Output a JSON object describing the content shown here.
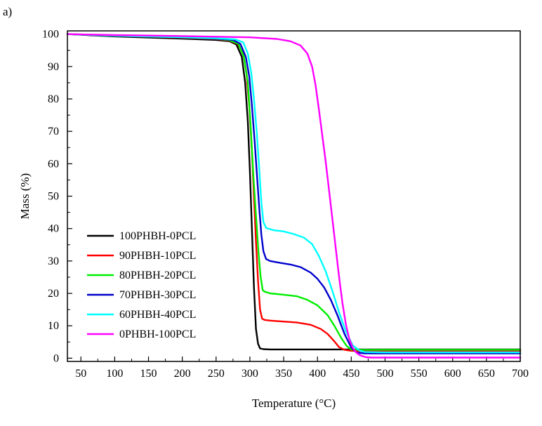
{
  "panel_label": "a)",
  "chart_data": {
    "type": "line",
    "title": "",
    "xlabel": "Temperature (°C)",
    "ylabel": "Mass (%)",
    "xlim": [
      30,
      700
    ],
    "ylim": [
      -1,
      101
    ],
    "xticks": [
      50,
      100,
      150,
      200,
      250,
      300,
      350,
      400,
      450,
      500,
      550,
      600,
      650,
      700
    ],
    "yticks": [
      0,
      10,
      20,
      30,
      40,
      50,
      60,
      70,
      80,
      90,
      100
    ],
    "grid": false,
    "legend_position": "bottom-left",
    "series": [
      {
        "name": "100PHBH-0PCL",
        "color": "#000000",
        "x": [
          30,
          100,
          200,
          250,
          270,
          280,
          288,
          293,
          297,
          300,
          303,
          306,
          309,
          312,
          315,
          320,
          330,
          350,
          400,
          440,
          460,
          500,
          600,
          700
        ],
        "y": [
          100,
          99.3,
          98.6,
          98.2,
          97.8,
          96.8,
          93,
          85,
          73,
          58,
          40,
          22,
          9,
          4.5,
          3.0,
          2.8,
          2.7,
          2.7,
          2.7,
          2.7,
          2.7,
          2.7,
          2.7,
          2.7
        ]
      },
      {
        "name": "90PHBH-10PCL",
        "color": "#ff0000",
        "x": [
          30,
          100,
          200,
          250,
          270,
          282,
          290,
          295,
          299,
          303,
          306,
          309,
          312,
          315,
          318,
          322,
          330,
          350,
          370,
          390,
          405,
          415,
          425,
          432,
          440,
          450,
          460,
          500,
          600,
          700
        ],
        "y": [
          100,
          99.5,
          98.9,
          98.5,
          98,
          97,
          94,
          88,
          78,
          64,
          50,
          36,
          24,
          15,
          12.2,
          11.8,
          11.6,
          11.3,
          11,
          10.3,
          9,
          7.5,
          5.2,
          3.4,
          2.6,
          2.3,
          2.2,
          2.2,
          2.2,
          2.2
        ]
      },
      {
        "name": "80PHBH-20PCL",
        "color": "#00ee00",
        "x": [
          30,
          100,
          200,
          250,
          270,
          283,
          291,
          297,
          301,
          305,
          309,
          313,
          316,
          319,
          322,
          330,
          350,
          370,
          385,
          400,
          415,
          425,
          435,
          443,
          450,
          460,
          500,
          600,
          700
        ],
        "y": [
          100,
          99.5,
          99,
          98.6,
          98.1,
          97,
          93,
          85,
          72,
          57,
          44,
          32,
          25,
          21,
          20.5,
          20,
          19.6,
          19.1,
          18,
          16.3,
          13.3,
          10,
          6.3,
          3.8,
          2.7,
          2.6,
          2.6,
          2.6,
          2.6
        ]
      },
      {
        "name": "70PHBH-30PCL",
        "color": "#0000cc",
        "x": [
          30,
          100,
          200,
          250,
          275,
          286,
          294,
          299,
          303,
          307,
          311,
          314,
          317,
          320,
          324,
          330,
          345,
          360,
          375,
          390,
          400,
          410,
          420,
          430,
          440,
          450,
          458,
          470,
          500,
          600,
          700
        ],
        "y": [
          100,
          99.5,
          99,
          98.6,
          98.2,
          97,
          93,
          87,
          78,
          67,
          55,
          46,
          38,
          33,
          30.6,
          30,
          29.4,
          28.9,
          28.1,
          26.4,
          24.5,
          21.8,
          17.9,
          13,
          7.5,
          3.3,
          1.7,
          1.5,
          1.5,
          1.5,
          1.5
        ]
      },
      {
        "name": "60PHBH-40PCL",
        "color": "#00ffff",
        "x": [
          30,
          100,
          200,
          250,
          278,
          290,
          297,
          302,
          306,
          310,
          314,
          317,
          320,
          324,
          335,
          350,
          365,
          380,
          392,
          402,
          412,
          422,
          432,
          442,
          452,
          462,
          470,
          500,
          600,
          700
        ],
        "y": [
          100,
          99.5,
          99,
          98.7,
          98.4,
          97.5,
          94,
          88,
          80,
          70,
          58,
          48,
          42,
          40.2,
          39.5,
          39.1,
          38.3,
          37.2,
          35.2,
          31.6,
          26.9,
          20.8,
          14.1,
          8.3,
          4,
          2.4,
          1.9,
          1.8,
          1.8,
          1.8
        ]
      },
      {
        "name": "0PHBH-100PCL",
        "color": "#ff00ff",
        "x": [
          30,
          100,
          200,
          250,
          300,
          340,
          360,
          375,
          385,
          392,
          397,
          402,
          407,
          412,
          417,
          422,
          427,
          432,
          437,
          442,
          447,
          452,
          457,
          462,
          467,
          472,
          480,
          500,
          600,
          700
        ],
        "y": [
          100,
          99.7,
          99.4,
          99.2,
          99,
          98.5,
          97.8,
          96.5,
          94,
          90,
          84.5,
          77,
          69,
          61,
          52,
          43,
          34,
          25,
          17,
          10.5,
          6,
          3.3,
          1.8,
          1.0,
          0.6,
          0.3,
          0.2,
          0.2,
          0.2,
          0.2
        ]
      }
    ]
  }
}
